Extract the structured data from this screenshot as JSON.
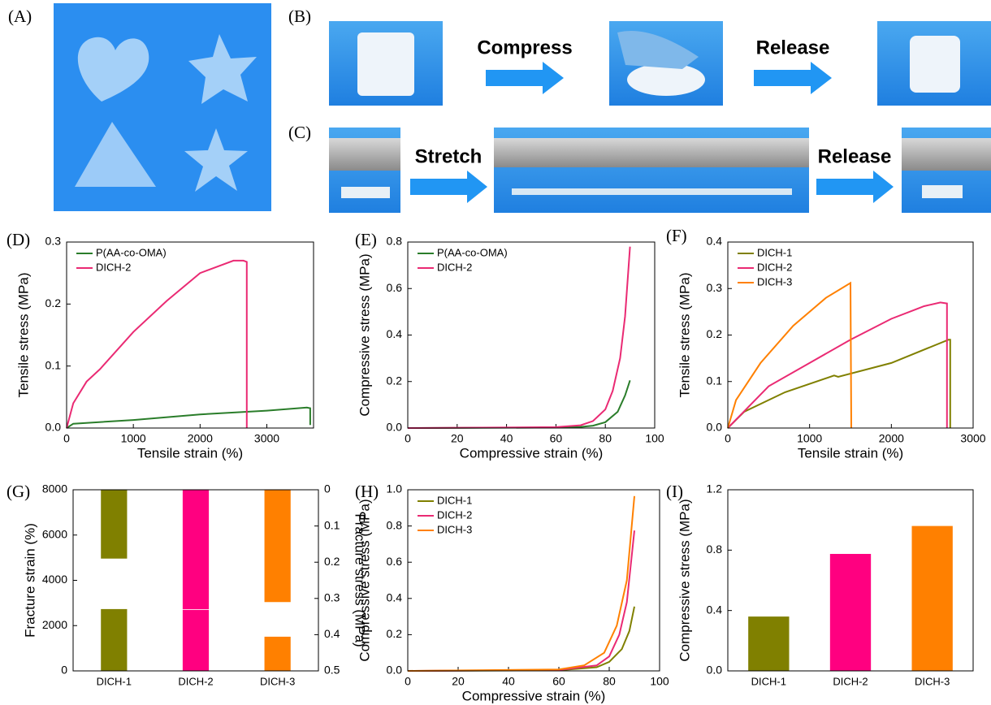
{
  "photo_panels": [
    {
      "label": "(A)"
    },
    {
      "label": "(B)",
      "captions": [
        "Compress",
        "Release"
      ]
    },
    {
      "label": "(C)",
      "captions": [
        "Stretch",
        "Release"
      ]
    }
  ],
  "chart_data": [
    {
      "type": "line",
      "panel": "(D)",
      "y_label": "Tensile stress (MPa)",
      "x_label": "Tensile strain (%)",
      "xlim": [
        0,
        3700
      ],
      "xticks": [
        0,
        1000,
        2000,
        3000
      ],
      "ylim": [
        0,
        0.3
      ],
      "yticks": [
        {
          "value": 0,
          "label": "0.0"
        },
        0.1,
        0.2,
        0.3
      ],
      "series": [
        {
          "name": "P(AA-co-OMA)",
          "color": "#2a7d2a",
          "x": [
            0,
            100,
            1000,
            2000,
            3000,
            3600,
            3650,
            3650
          ],
          "values": [
            0,
            0.007,
            0.013,
            0.022,
            0.028,
            0.033,
            0.032,
            0.005
          ]
        },
        {
          "name": "DICH-2",
          "color": "#ea2a73",
          "x": [
            0,
            100,
            300,
            500,
            1000,
            1500,
            2000,
            2200,
            2500,
            2650,
            2700,
            2700
          ],
          "values": [
            0,
            0.04,
            0.075,
            0.095,
            0.155,
            0.205,
            0.25,
            0.258,
            0.27,
            0.27,
            0.268,
            0
          ]
        }
      ]
    },
    {
      "type": "line",
      "panel": "(E)",
      "y_label": "Compressive stress (MPa)",
      "x_label": "Compressive strain (%)",
      "xlim": [
        0,
        100
      ],
      "xticks": [
        0,
        20,
        40,
        60,
        80,
        100
      ],
      "ylim": [
        0,
        0.8
      ],
      "yticks": [
        {
          "value": 0,
          "label": "0.0"
        },
        0.2,
        0.4,
        0.6,
        0.8
      ],
      "series": [
        {
          "name": "P(AA-co-OMA)",
          "color": "#2a7d2a",
          "x": [
            0,
            60,
            70,
            75,
            80,
            85,
            88,
            90
          ],
          "values": [
            0,
            0.002,
            0.005,
            0.01,
            0.025,
            0.07,
            0.14,
            0.205
          ]
        },
        {
          "name": "DICH-2",
          "color": "#ea2a73",
          "x": [
            0,
            60,
            70,
            75,
            80,
            83,
            86,
            88,
            90
          ],
          "values": [
            0,
            0.004,
            0.012,
            0.03,
            0.08,
            0.16,
            0.3,
            0.48,
            0.78
          ]
        }
      ]
    },
    {
      "type": "line",
      "panel": "(F)",
      "y_label": "Tensile stress (MPa)",
      "x_label": "Tensile strain (%)",
      "xlim": [
        0,
        3000
      ],
      "xticks": [
        0,
        1000,
        2000,
        3000
      ],
      "ylim": [
        0,
        0.4
      ],
      "yticks": [
        {
          "value": 0,
          "label": "0.0"
        },
        0.1,
        0.2,
        0.3,
        0.4
      ],
      "series": [
        {
          "name": "DICH-1",
          "color": "#808000",
          "x": [
            0,
            200,
            700,
            1300,
            1350,
            2000,
            2700,
            2720,
            2720
          ],
          "values": [
            0,
            0.035,
            0.077,
            0.113,
            0.11,
            0.14,
            0.19,
            0.19,
            0
          ]
        },
        {
          "name": "DICH-2",
          "color": "#ea2a73",
          "x": [
            0,
            500,
            1000,
            1500,
            2000,
            2400,
            2600,
            2680,
            2680
          ],
          "values": [
            0,
            0.09,
            0.14,
            0.19,
            0.235,
            0.262,
            0.27,
            0.268,
            0
          ]
        },
        {
          "name": "DICH-3",
          "color": "#ff8000",
          "x": [
            0,
            100,
            400,
            800,
            1200,
            1500,
            1510
          ],
          "values": [
            0,
            0.06,
            0.14,
            0.22,
            0.28,
            0.312,
            0
          ]
        }
      ]
    },
    {
      "type": "bar",
      "panel": "(G)",
      "y_label": "Fracture strain (%)",
      "y2_label": "Fracture stress (MPa)",
      "categories": [
        "DICH-1",
        "DICH-2",
        "DICH-3"
      ],
      "colors": [
        "#808000",
        "#ff0080",
        "#ff8000"
      ],
      "ylim": [
        0,
        8000
      ],
      "yticks": [
        0,
        2000,
        4000,
        6000,
        8000
      ],
      "y2lim": [
        0.5,
        0
      ],
      "y2ticks": [
        0,
        0.1,
        0.2,
        0.3,
        0.4,
        0.5
      ],
      "series": [
        {
          "values": [
            2730,
            2690,
            1510
          ]
        },
        {
          "axis": "y2",
          "values": [
            0.19,
            0.33,
            0.31
          ]
        }
      ]
    },
    {
      "type": "line",
      "panel": "(H)",
      "y_label": "Compressive stress (MPa)",
      "x_label": "Compressive strain (%)",
      "xlim": [
        0,
        100
      ],
      "xticks": [
        0,
        20,
        40,
        60,
        80,
        100
      ],
      "ylim": [
        0,
        1
      ],
      "yticks": [
        {
          "value": 0,
          "label": "0.0"
        },
        0.2,
        0.4,
        0.6,
        0.8,
        {
          "value": 1,
          "label": "1.0"
        }
      ],
      "series": [
        {
          "name": "DICH-1",
          "color": "#808000",
          "x": [
            0,
            60,
            75,
            80,
            85,
            88,
            90
          ],
          "values": [
            0,
            0.003,
            0.02,
            0.05,
            0.12,
            0.22,
            0.355
          ]
        },
        {
          "name": "DICH-2",
          "color": "#ea2a73",
          "x": [
            0,
            60,
            75,
            80,
            84,
            87,
            90
          ],
          "values": [
            0,
            0.005,
            0.03,
            0.08,
            0.2,
            0.38,
            0.775
          ]
        },
        {
          "name": "DICH-3",
          "color": "#ff8000",
          "x": [
            0,
            60,
            70,
            78,
            83,
            87,
            90
          ],
          "values": [
            0,
            0.008,
            0.03,
            0.1,
            0.25,
            0.5,
            0.965
          ]
        }
      ]
    },
    {
      "type": "bar",
      "panel": "(I)",
      "y_label": "Compressive stress (MPa)",
      "categories": [
        "DICH-1",
        "DICH-2",
        "DICH-3"
      ],
      "colors": [
        "#808000",
        "#ff0080",
        "#ff8000"
      ],
      "ylim": [
        0,
        1.2
      ],
      "yticks": [
        {
          "value": 0,
          "label": "0.0"
        },
        0.4,
        0.8,
        1.2
      ],
      "series": [
        {
          "values": [
            0.36,
            0.775,
            0.96
          ]
        }
      ]
    }
  ]
}
